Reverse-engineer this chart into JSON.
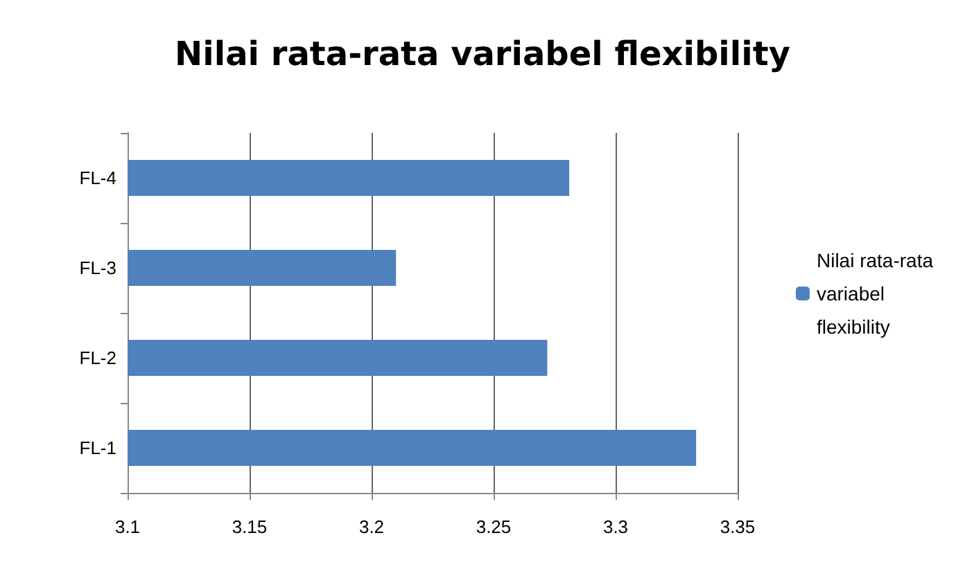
{
  "chart_data": {
    "type": "bar",
    "orientation": "horizontal",
    "title": "Nilai rata-rata variabel flexibility",
    "categories": [
      "FL-4",
      "FL-3",
      "FL-2",
      "FL-1"
    ],
    "series": [
      {
        "name": "Nilai rata-rata variabel flexibility",
        "color": "#4f81bd",
        "values": [
          3.281,
          3.21,
          3.272,
          3.333
        ]
      }
    ],
    "xlim": [
      3.1,
      3.35
    ],
    "xticks": [
      3.1,
      3.15,
      3.2,
      3.25,
      3.3,
      3.35
    ],
    "grid": "x",
    "legend": "right"
  }
}
